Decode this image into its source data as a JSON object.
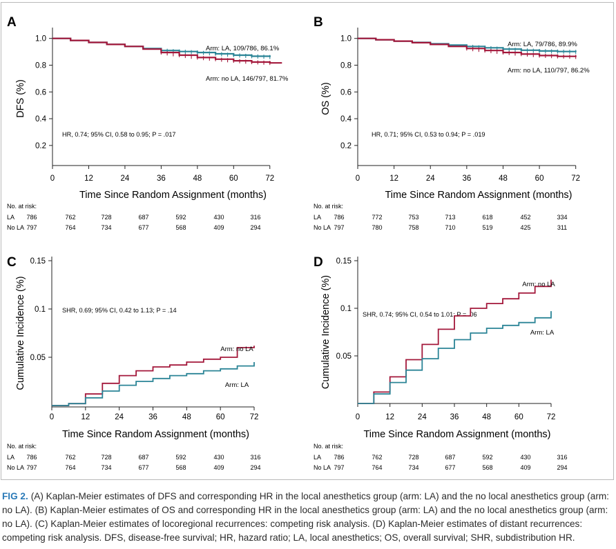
{
  "caption": {
    "label": "FIG 2.",
    "text": "(A) Kaplan-Meier estimates of DFS and corresponding HR in the local anesthetics group (arm: LA) and the no local anesthetics group (arm: no LA). (B) Kaplan-Meier estimates of OS and corresponding HR in the local anesthetics group (arm: LA) and the no local anesthetics group (arm: no LA). (C) Kaplan-Meier estimates of locoregional recurrences: competing risk analysis. (D) Kaplan-Meier estimates of distant recurrences: competing risk analysis. DFS, disease-free survival; HR, hazard ratio; LA, local anesthetics; OS, overall survival; SHR, subdistribution HR."
  },
  "colors": {
    "la": "#2a8496",
    "no_la": "#a3173a",
    "axis": "#222222"
  },
  "chart_data": [
    {
      "panel": "A",
      "type": "line",
      "xlabel": "Time Since Random Assignment (months)",
      "ylabel": "DFS (%)",
      "xlim": [
        0,
        78
      ],
      "ylim": [
        0.05,
        1.05
      ],
      "xticks": [
        0,
        12,
        24,
        36,
        48,
        60,
        72
      ],
      "xtick_labels": [
        "0",
        "12",
        "24",
        "36",
        "48",
        "60",
        "72"
      ],
      "yticks": [
        0.2,
        0.4,
        0.6,
        0.8,
        1.0
      ],
      "ytick_labels": [
        "0.2",
        "0.4",
        "0.6",
        "0.8",
        "1.0"
      ],
      "annotation": "HR, 0.74; 95% CI, 0.58 to 0.95; P = .017",
      "series": [
        {
          "key": "la",
          "label": "Arm: LA, 109/786, 86.1%",
          "x": [
            0,
            6,
            12,
            18,
            24,
            30,
            36,
            42,
            48,
            54,
            60,
            66,
            72
          ],
          "y": [
            1.0,
            0.985,
            0.97,
            0.955,
            0.94,
            0.925,
            0.91,
            0.902,
            0.895,
            0.885,
            0.875,
            0.867,
            0.861
          ]
        },
        {
          "key": "no_la",
          "label": "Arm: no LA, 146/797, 81.7%",
          "x": [
            0,
            6,
            12,
            18,
            24,
            30,
            36,
            42,
            48,
            54,
            60,
            66,
            72,
            76
          ],
          "y": [
            1.0,
            0.985,
            0.97,
            0.955,
            0.94,
            0.92,
            0.895,
            0.875,
            0.857,
            0.845,
            0.833,
            0.823,
            0.817,
            0.817
          ]
        }
      ],
      "risk_table": {
        "title": "No. at risk:",
        "rows": [
          {
            "label": "LA",
            "values": [
              786,
              762,
              728,
              687,
              592,
              430,
              316
            ]
          },
          {
            "label": "No LA",
            "values": [
              797,
              764,
              734,
              677,
              568,
              409,
              294
            ]
          }
        ]
      }
    },
    {
      "panel": "B",
      "type": "line",
      "xlabel": "Time Since Random Assignment (months)",
      "ylabel": "OS (%)",
      "xlim": [
        0,
        78
      ],
      "ylim": [
        0.05,
        1.05
      ],
      "xticks": [
        0,
        12,
        24,
        36,
        48,
        60,
        72
      ],
      "xtick_labels": [
        "0",
        "12",
        "24",
        "36",
        "48",
        "60",
        "72"
      ],
      "yticks": [
        0.2,
        0.4,
        0.6,
        0.8,
        1.0
      ],
      "ytick_labels": [
        "0.2",
        "0.4",
        "0.6",
        "0.8",
        "1.0"
      ],
      "annotation": "HR, 0.71; 95% CI, 0.53 to 0.94; P = .019",
      "series": [
        {
          "key": "la",
          "label": "Arm: LA, 79/786, 89.9%",
          "x": [
            0,
            6,
            12,
            18,
            24,
            30,
            36,
            42,
            48,
            54,
            60,
            66,
            72
          ],
          "y": [
            1.0,
            0.99,
            0.98,
            0.97,
            0.96,
            0.95,
            0.94,
            0.93,
            0.92,
            0.912,
            0.906,
            0.902,
            0.899
          ]
        },
        {
          "key": "no_la",
          "label": "Arm: no LA, 110/797, 86.2%",
          "x": [
            0,
            6,
            12,
            18,
            24,
            30,
            36,
            42,
            48,
            54,
            60,
            66,
            72
          ],
          "y": [
            1.0,
            0.99,
            0.98,
            0.968,
            0.955,
            0.94,
            0.925,
            0.91,
            0.895,
            0.883,
            0.872,
            0.866,
            0.862
          ]
        }
      ],
      "risk_table": {
        "title": "No. at risk:",
        "rows": [
          {
            "label": "LA",
            "values": [
              786,
              772,
              753,
              713,
              618,
              452,
              334
            ]
          },
          {
            "label": "No LA",
            "values": [
              797,
              780,
              758,
              710,
              519,
              425,
              311
            ]
          }
        ]
      }
    },
    {
      "panel": "C",
      "type": "line",
      "xlabel": "Time Since Random Assignment (months)",
      "ylabel": "Cumulative Incidence (%)",
      "xlim": [
        0,
        72
      ],
      "ylim": [
        0,
        0.15
      ],
      "xticks": [
        0,
        12,
        24,
        36,
        48,
        60,
        72
      ],
      "xtick_labels": [
        "0",
        "12",
        "24",
        "36",
        "48",
        "60",
        "72"
      ],
      "yticks": [
        0.05,
        0.1,
        0.15
      ],
      "ytick_labels": [
        "0.05",
        "0.1",
        "0.15"
      ],
      "annotation": "SHR, 0.69; 95% CI, 0.42 to 1.13; P = .14",
      "series": [
        {
          "key": "no_la",
          "label": "Arm: no LA",
          "x": [
            0,
            6,
            12,
            18,
            24,
            30,
            36,
            42,
            48,
            54,
            60,
            66,
            72
          ],
          "y": [
            0,
            0.002,
            0.012,
            0.023,
            0.031,
            0.036,
            0.04,
            0.042,
            0.045,
            0.048,
            0.05,
            0.06,
            0.062
          ]
        },
        {
          "key": "la",
          "label": "Arm: LA",
          "x": [
            0,
            6,
            12,
            18,
            24,
            30,
            36,
            42,
            48,
            54,
            60,
            66,
            72
          ],
          "y": [
            0,
            0.002,
            0.008,
            0.015,
            0.021,
            0.025,
            0.028,
            0.031,
            0.033,
            0.036,
            0.038,
            0.041,
            0.045
          ]
        }
      ],
      "risk_table": {
        "title": "No. at risk:",
        "rows": [
          {
            "label": "LA",
            "values": [
              786,
              762,
              728,
              687,
              592,
              430,
              316
            ]
          },
          {
            "label": "No LA",
            "values": [
              797,
              764,
              734,
              677,
              568,
              409,
              294
            ]
          }
        ]
      }
    },
    {
      "panel": "D",
      "type": "line",
      "xlabel": "Time Since Random Assignment (months)",
      "ylabel": "Cumulative Incidence (%)",
      "xlim": [
        0,
        72
      ],
      "ylim": [
        0,
        0.15
      ],
      "xticks": [
        0,
        12,
        24,
        36,
        48,
        60,
        72
      ],
      "xtick_labels": [
        "0",
        "12",
        "24",
        "36",
        "48",
        "60",
        "72"
      ],
      "yticks": [
        0.05,
        0.1,
        0.15
      ],
      "ytick_labels": [
        "0.05",
        "0.1",
        "0.15"
      ],
      "annotation": "SHR, 0.74; 95% CI, 0.54 to 1.01; P = .06",
      "series": [
        {
          "key": "no_la",
          "label": "Arm: no LA",
          "x": [
            0,
            6,
            12,
            18,
            24,
            30,
            36,
            42,
            48,
            54,
            60,
            66,
            72
          ],
          "y": [
            0,
            0.012,
            0.028,
            0.046,
            0.062,
            0.078,
            0.092,
            0.1,
            0.105,
            0.11,
            0.116,
            0.123,
            0.13
          ]
        },
        {
          "key": "la",
          "label": "Arm: LA",
          "x": [
            0,
            6,
            12,
            18,
            24,
            30,
            36,
            42,
            48,
            54,
            60,
            66,
            72
          ],
          "y": [
            0,
            0.01,
            0.022,
            0.035,
            0.047,
            0.058,
            0.067,
            0.074,
            0.079,
            0.082,
            0.085,
            0.09,
            0.097
          ]
        }
      ],
      "risk_table": {
        "title": "No. at risk:",
        "rows": [
          {
            "label": "LA",
            "values": [
              786,
              762,
              728,
              687,
              592,
              430,
              316
            ]
          },
          {
            "label": "No LA",
            "values": [
              797,
              764,
              734,
              677,
              568,
              409,
              294
            ]
          }
        ]
      }
    }
  ]
}
